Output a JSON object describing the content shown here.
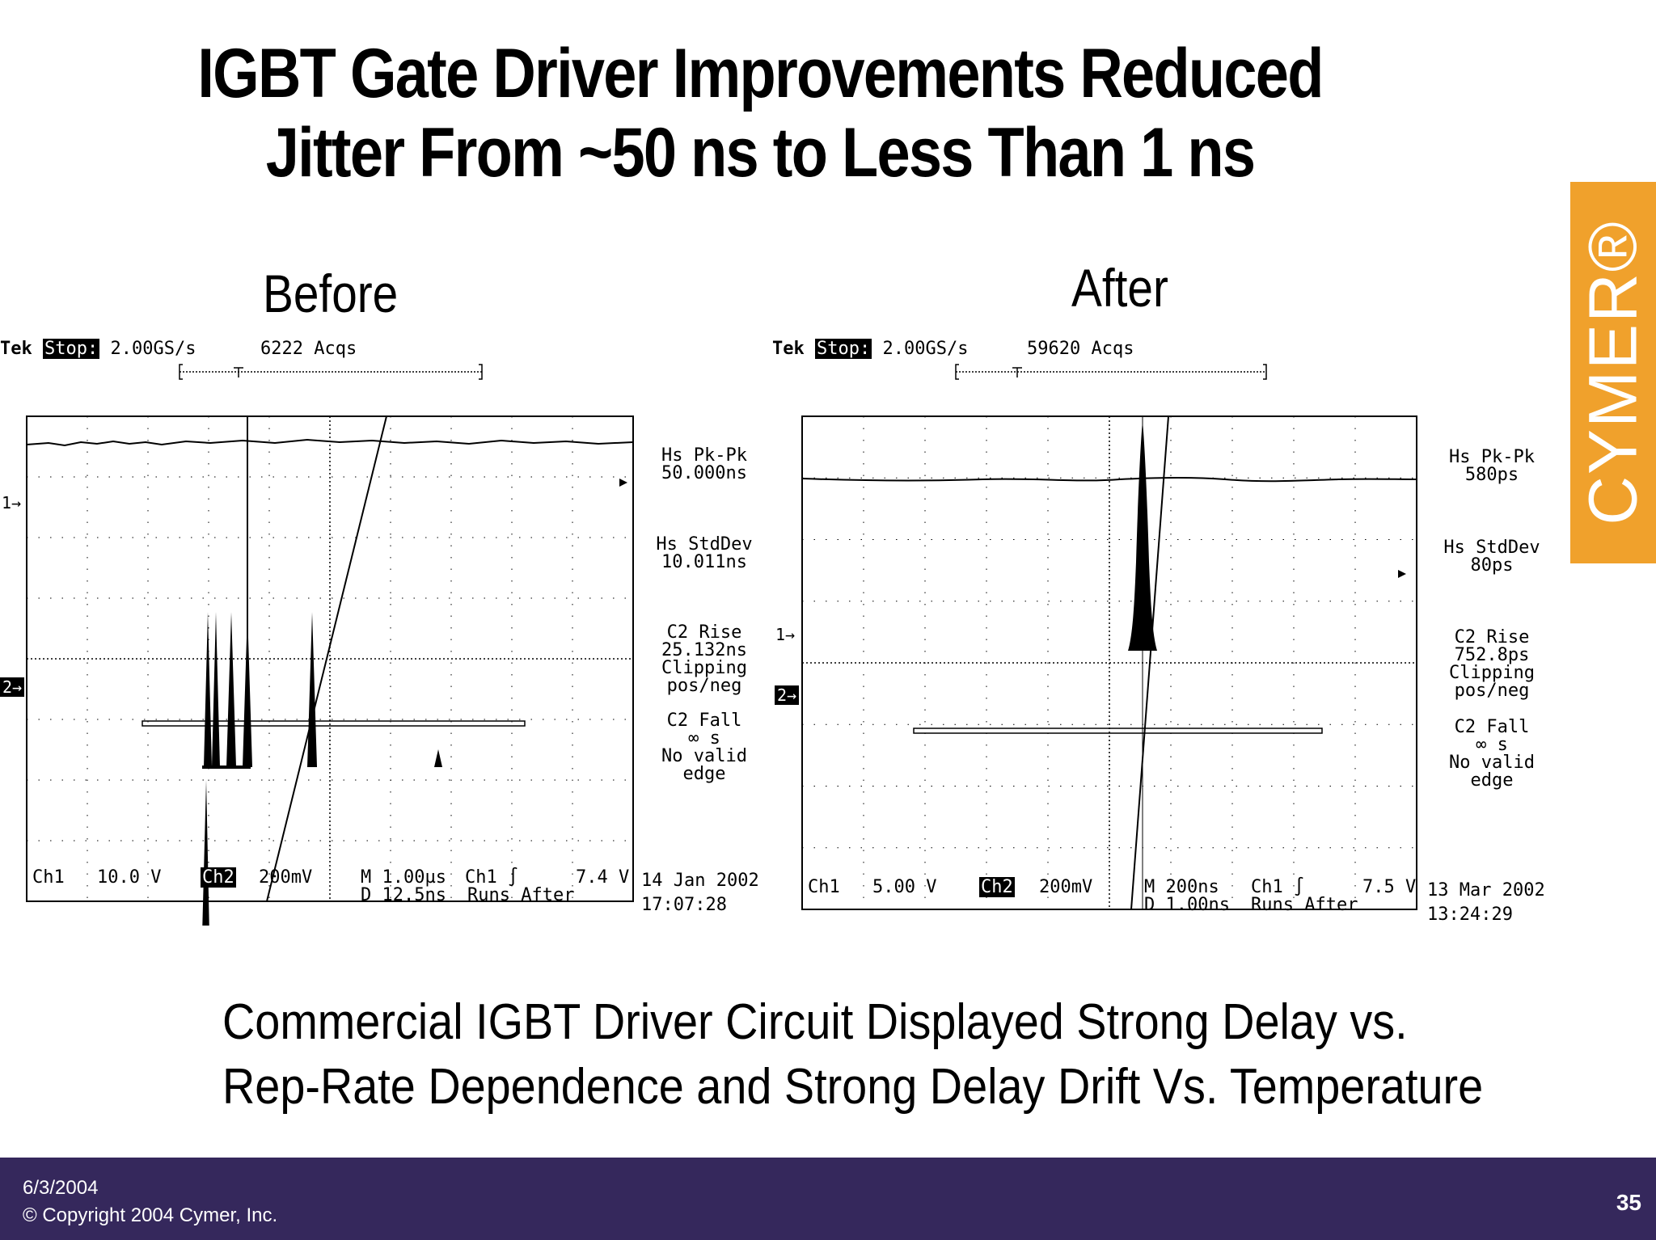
{
  "title": {
    "line1": "IGBT Gate Driver Improvements Reduced",
    "line2": "Jitter From ~50 ns to Less Than 1 ns"
  },
  "before": {
    "label": "Before",
    "tek": "Tek",
    "stop": "Stop:",
    "rate": "2.00GS/s",
    "acqs": "6222 Acqs",
    "measurements": [
      {
        "name": "Hs Pk-Pk",
        "value": "50.000ns"
      },
      {
        "name": "Hs StdDev",
        "value": "10.011ns"
      },
      {
        "name": "C2 Rise",
        "value": "25.132ns",
        "extra1": "Clipping",
        "extra2": "pos/neg"
      },
      {
        "name": "C2 Fall",
        "value": "∞ s",
        "extra1": "No valid",
        "extra2": "edge"
      }
    ],
    "ch1": "Ch1",
    "ch1_scale": "10.0 V",
    "ch2": "Ch2",
    "ch2_scale": "200mV",
    "timebase": "M 1.00µs",
    "trigger": "Ch1 ∫",
    "trig_level": "7.4 V",
    "delay": "D 12.5ns",
    "runs": "Runs After",
    "date": "14 Jan 2002",
    "time": "17:07:28",
    "marker1": "1→",
    "marker2": "2→"
  },
  "after": {
    "label": "After",
    "tek": "Tek",
    "stop": "Stop:",
    "rate": "2.00GS/s",
    "acqs": "59620 Acqs",
    "measurements": [
      {
        "name": "Hs Pk-Pk",
        "value": "580ps"
      },
      {
        "name": "Hs StdDev",
        "value": "80ps"
      },
      {
        "name": "C2 Rise",
        "value": "752.8ps",
        "extra1": "Clipping",
        "extra2": "pos/neg"
      },
      {
        "name": "C2 Fall",
        "value": "∞ s",
        "extra1": "No valid",
        "extra2": "edge"
      }
    ],
    "ch1": "Ch1",
    "ch1_scale": "5.00 V",
    "ch2": "Ch2",
    "ch2_scale": "200mV",
    "timebase": "M 200ns",
    "trigger": "Ch1 ∫",
    "trig_level": "7.5 V",
    "delay": "D 1.00ns",
    "runs": "Runs After",
    "date": "13 Mar 2002",
    "time": "13:24:29",
    "marker1": "1→",
    "marker2": "2→"
  },
  "caption": {
    "line1": "Commercial IGBT Driver Circuit Displayed Strong Delay vs.",
    "line2": "Rep-Rate Dependence and Strong Delay Drift Vs. Temperature"
  },
  "logo": "CYMER®",
  "footer": {
    "date": "6/3/2004",
    "copyright": "© Copyright 2004 Cymer, Inc.",
    "page": "35"
  }
}
